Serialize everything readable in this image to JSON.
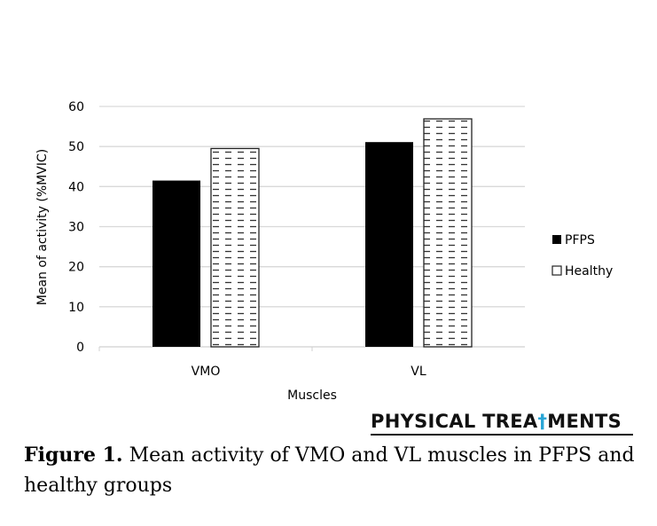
{
  "chart_data": {
    "type": "bar",
    "title": "",
    "xlabel": "Muscles",
    "ylabel": "Mean of activity (%MVIC)",
    "categories": [
      "VMO",
      "VL"
    ],
    "series": [
      {
        "name": "PFPS",
        "values": [
          41.5,
          51.1
        ],
        "color": "#000000",
        "pattern": "solid"
      },
      {
        "name": "Healthy",
        "values": [
          49.5,
          56.9
        ],
        "color": "#ffffff",
        "pattern": "dashed-horizontal"
      }
    ],
    "ylim": [
      0,
      60
    ],
    "yticks": [
      0,
      10,
      20,
      30,
      40,
      50,
      60
    ],
    "grid": true,
    "legend_position": "right"
  },
  "brand": {
    "text_before": "PHYSICAL TREA",
    "text_after": "MENTS",
    "accent_color": "#2aa6d6"
  },
  "caption": {
    "label": "Figure 1.",
    "text": " Mean activity of VMO and VL muscles in PFPS and healthy groups"
  }
}
